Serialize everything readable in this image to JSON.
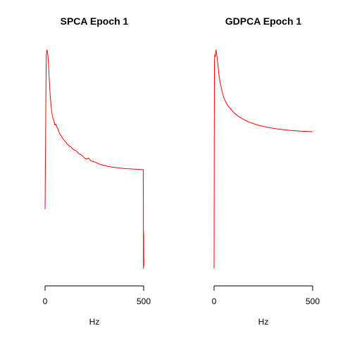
{
  "chart_data": [
    {
      "type": "line",
      "title": "SPCA Epoch 1",
      "xlabel": "Hz",
      "ylabel": "",
      "xlim": [
        0,
        500
      ],
      "ylim": [
        0,
        1
      ],
      "y_axis_shown": false,
      "grid": false,
      "x_ticks": [
        {
          "value": 0,
          "label": "0"
        },
        {
          "value": 500,
          "label": "500"
        }
      ],
      "series": [
        {
          "color": "#ff0000",
          "x": [
            0,
            2,
            4,
            6,
            8,
            10,
            14,
            18,
            22,
            26,
            30,
            35,
            40,
            45,
            50,
            55,
            60,
            65,
            70,
            75,
            80,
            90,
            100,
            110,
            120,
            130,
            140,
            150,
            160,
            170,
            180,
            190,
            200,
            210,
            220,
            230,
            240,
            250,
            260,
            270,
            280,
            290,
            300,
            310,
            320,
            330,
            340,
            350,
            360,
            370,
            380,
            390,
            400,
            410,
            420,
            430,
            440,
            450,
            460,
            470,
            480,
            490,
            498,
            499,
            500,
            501
          ],
          "y": [
            0.3,
            0.52,
            0.78,
            0.97,
            0.995,
            1.0,
            0.98,
            0.93,
            0.86,
            0.8,
            0.76,
            0.72,
            0.7,
            0.69,
            0.67,
            0.675,
            0.66,
            0.655,
            0.64,
            0.63,
            0.625,
            0.61,
            0.6,
            0.59,
            0.58,
            0.575,
            0.565,
            0.56,
            0.555,
            0.545,
            0.54,
            0.535,
            0.525,
            0.52,
            0.525,
            0.515,
            0.51,
            0.508,
            0.505,
            0.5,
            0.497,
            0.495,
            0.493,
            0.49,
            0.488,
            0.487,
            0.485,
            0.484,
            0.483,
            0.482,
            0.481,
            0.48,
            0.479,
            0.478,
            0.478,
            0.477,
            0.477,
            0.476,
            0.476,
            0.475,
            0.475,
            0.474,
            0.474,
            0.04,
            0.2,
            0.05
          ]
        }
      ]
    },
    {
      "type": "line",
      "title": "GDPCA Epoch 1",
      "xlabel": "Hz",
      "ylabel": "",
      "xlim": [
        0,
        500
      ],
      "ylim": [
        0,
        1
      ],
      "y_axis_shown": false,
      "grid": false,
      "x_ticks": [
        {
          "value": 0,
          "label": "0"
        },
        {
          "value": 500,
          "label": "500"
        }
      ],
      "series": [
        {
          "color": "#ff0000",
          "x": [
            0,
            1,
            2,
            4,
            6,
            8,
            10,
            12,
            15,
            20,
            25,
            30,
            40,
            50,
            60,
            70,
            80,
            100,
            120,
            140,
            160,
            180,
            200,
            230,
            260,
            290,
            320,
            350,
            380,
            410,
            440,
            470,
            500
          ],
          "y": [
            0.04,
            0.6,
            0.95,
            0.98,
            0.97,
            0.99,
            1.0,
            0.99,
            0.97,
            0.93,
            0.89,
            0.86,
            0.82,
            0.79,
            0.77,
            0.755,
            0.745,
            0.725,
            0.71,
            0.7,
            0.69,
            0.682,
            0.676,
            0.668,
            0.662,
            0.657,
            0.653,
            0.65,
            0.647,
            0.645,
            0.643,
            0.642,
            0.641
          ]
        }
      ]
    }
  ]
}
